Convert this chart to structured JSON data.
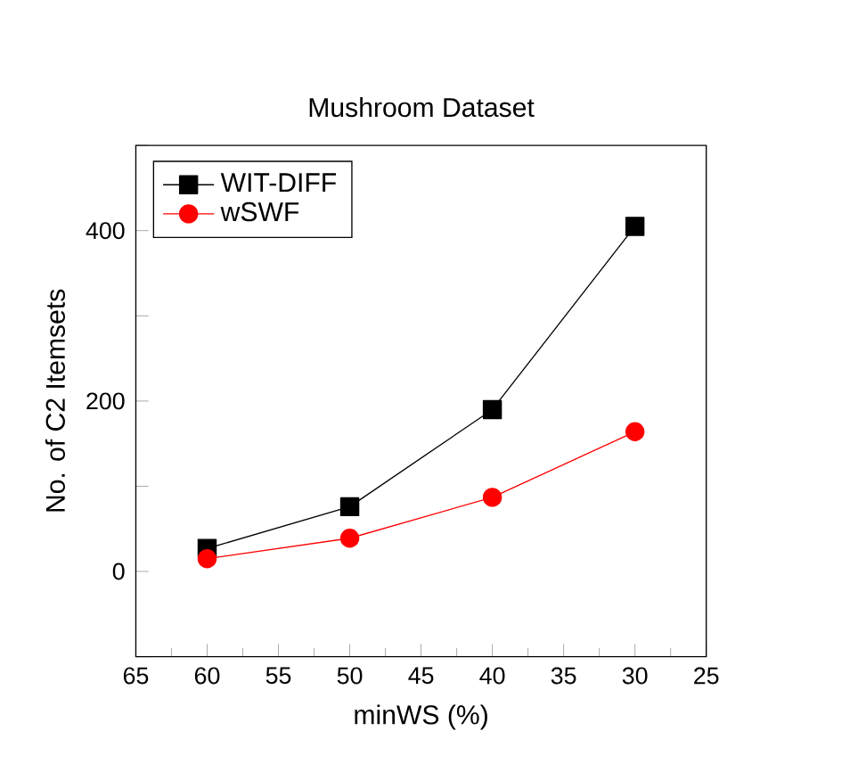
{
  "chart_data": {
    "type": "line",
    "title": "Mushroom Dataset",
    "xlabel": "minWS (%)",
    "ylabel": "No. of C2 Itemsets",
    "x": [
      60,
      50,
      40,
      30
    ],
    "series": [
      {
        "name": "WIT-DIFF",
        "color": "#000000",
        "marker": "square",
        "values": [
          27,
          76,
          190,
          405
        ]
      },
      {
        "name": "wSWF",
        "color": "#ff0000",
        "marker": "circle",
        "values": [
          15,
          39,
          87,
          164
        ]
      }
    ],
    "xlim": [
      65,
      25
    ],
    "xticks": [
      65,
      60,
      55,
      50,
      45,
      40,
      35,
      30,
      25
    ],
    "ylim": [
      -100,
      500
    ],
    "yticks": [
      {
        "value": -100,
        "label": null
      },
      0,
      {
        "value": 100,
        "label": null
      },
      200,
      {
        "value": 300,
        "label": null
      },
      400,
      {
        "value": 500,
        "label": null
      }
    ],
    "grid": false,
    "legend": "top left",
    "line_style": "solid"
  }
}
